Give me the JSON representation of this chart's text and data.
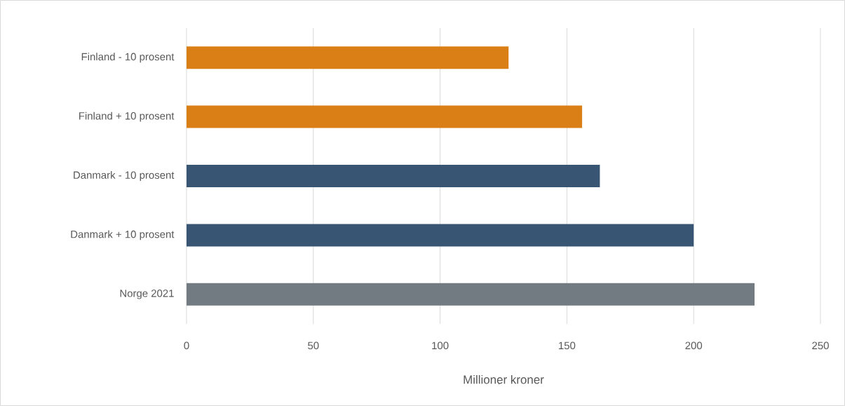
{
  "chart_data": {
    "type": "bar",
    "orientation": "horizontal",
    "xlabel": "Millioner kroner",
    "categories": [
      "Finland - 10 prosent",
      "Finland + 10 prosent",
      "Danmark - 10 prosent",
      "Danmark + 10 prosent",
      "Norge 2021"
    ],
    "values": [
      127,
      156,
      163,
      200,
      224
    ],
    "colors": [
      "#d97f16",
      "#d97f16",
      "#385673",
      "#385673",
      "#737b82"
    ],
    "xlim": [
      0,
      250
    ],
    "xticks": [
      0,
      50,
      100,
      150,
      200,
      250
    ],
    "grid": "x"
  }
}
